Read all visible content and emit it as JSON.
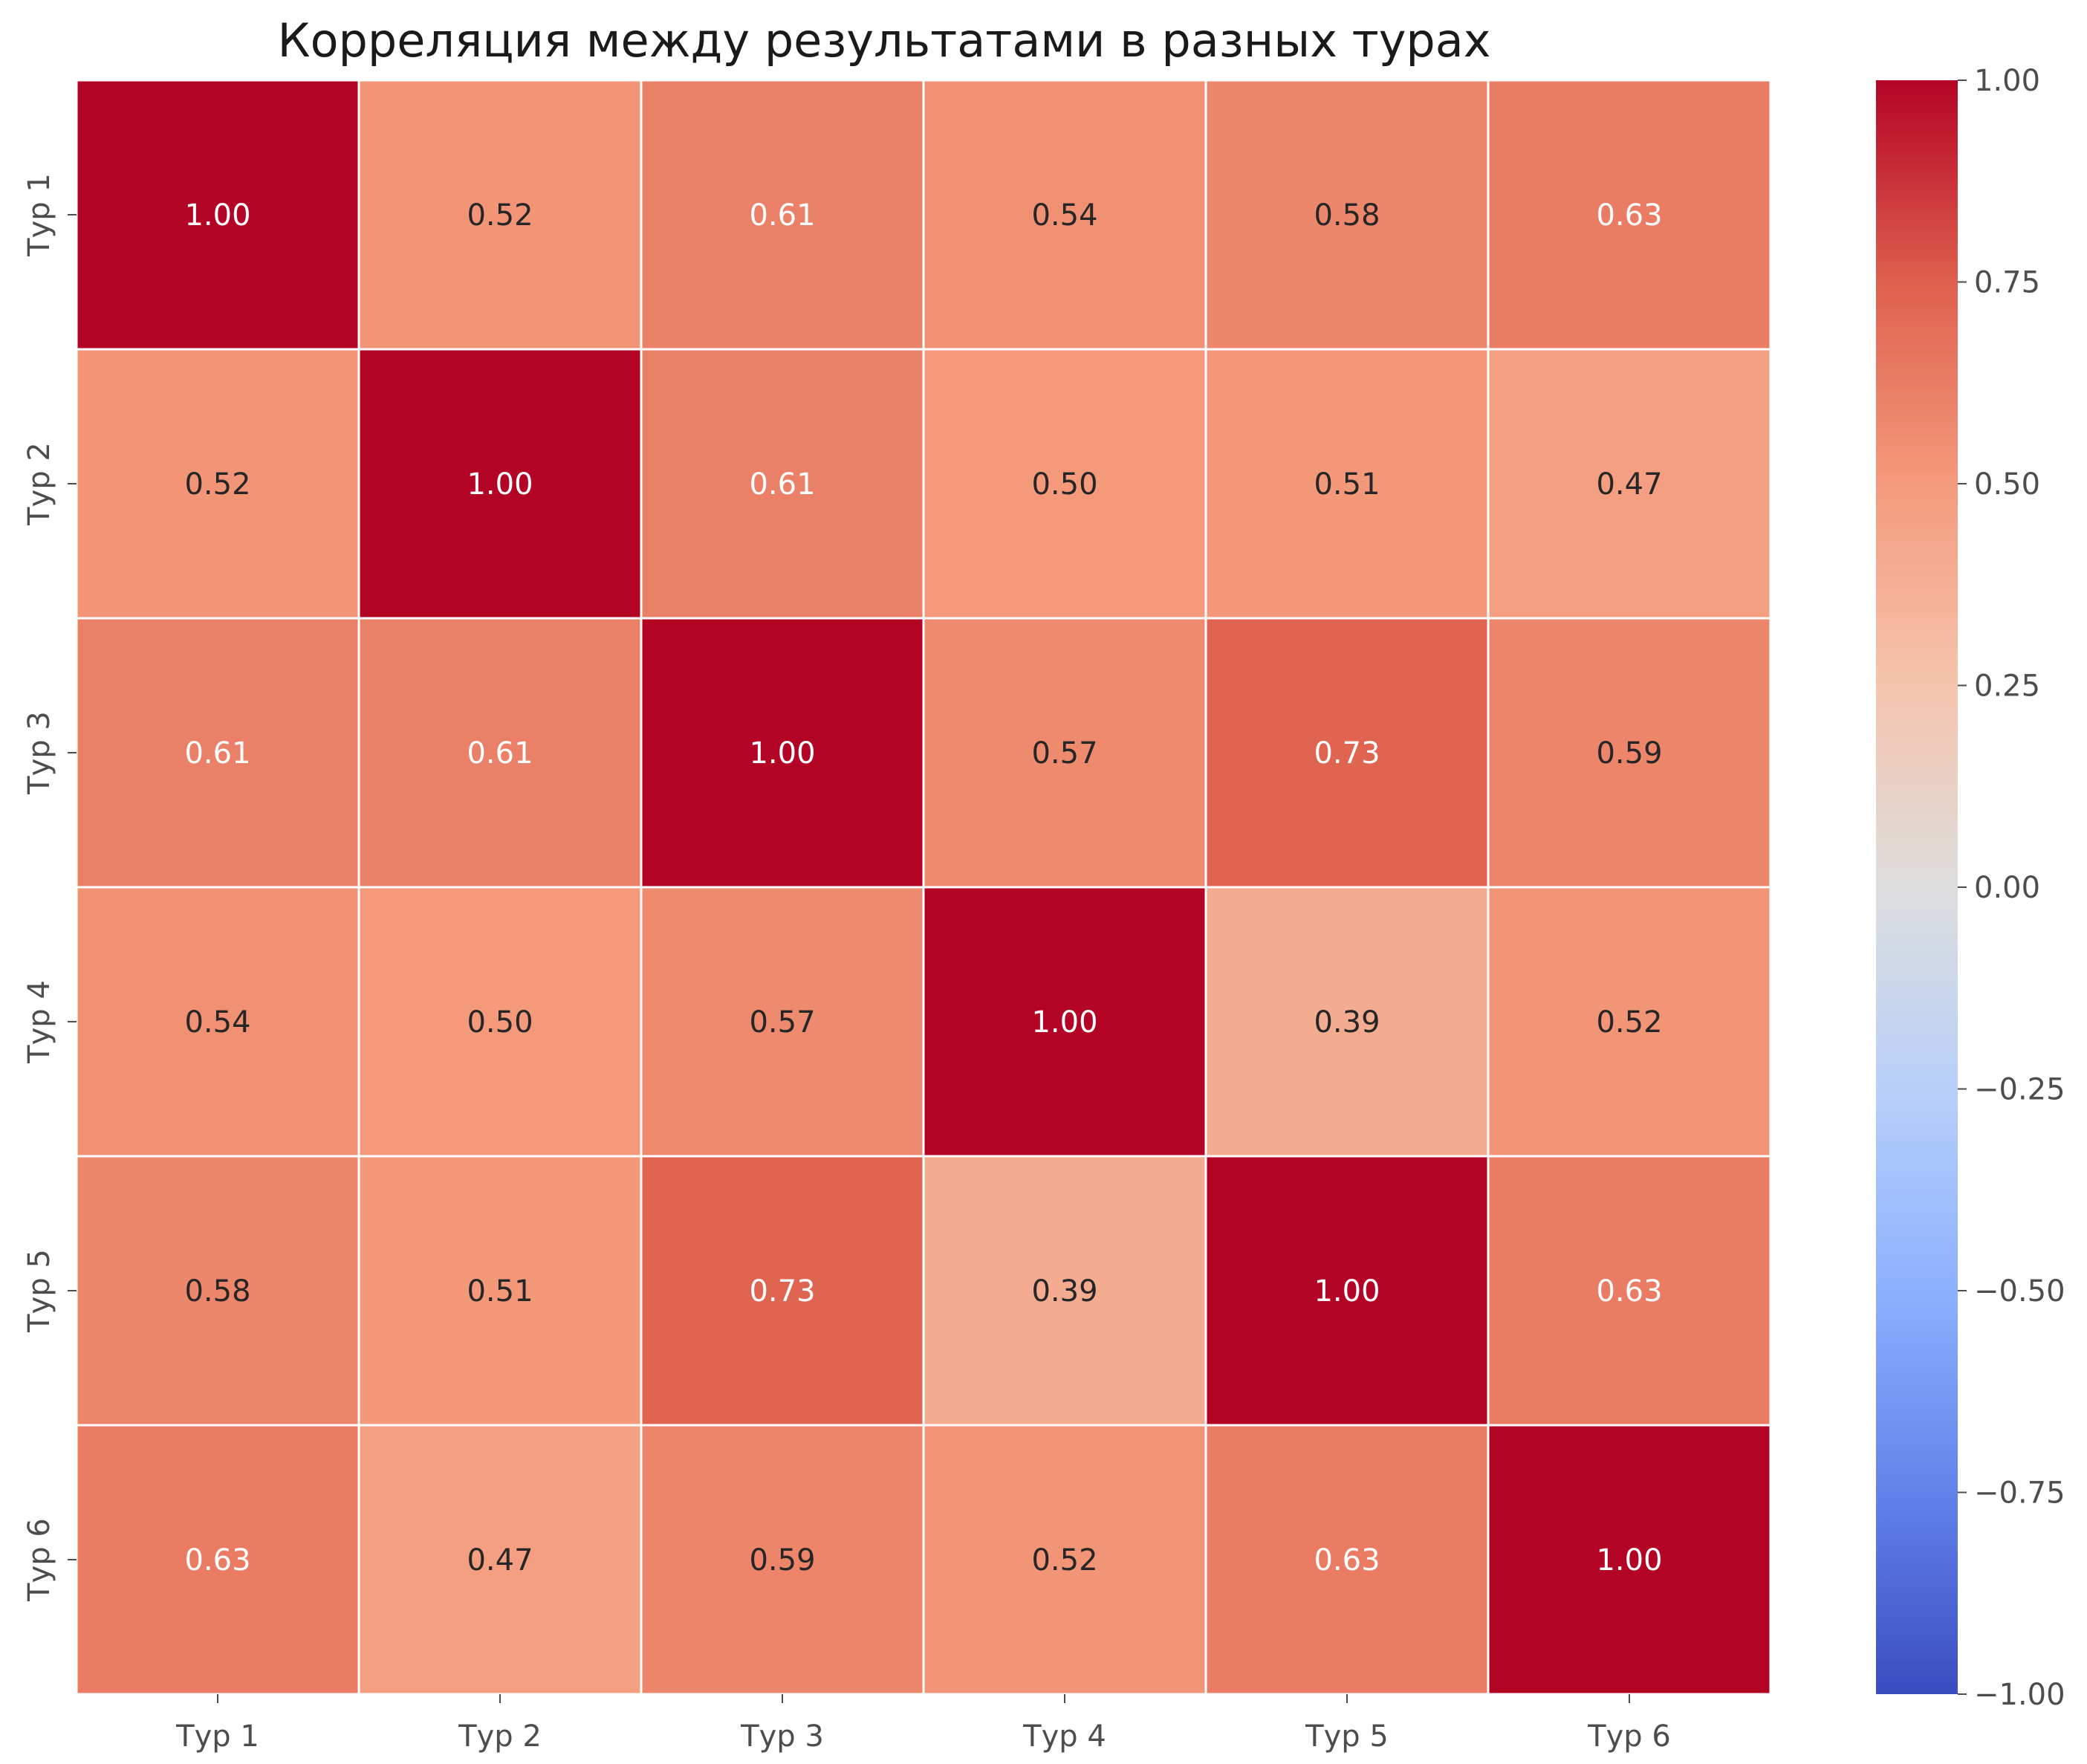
{
  "chart_data": {
    "type": "heatmap",
    "title": "Корреляция между результатами в разных турах",
    "row_labels": [
      "Тур 1",
      "Тур 2",
      "Тур 3",
      "Тур 4",
      "Тур 5",
      "Тур 6"
    ],
    "col_labels": [
      "Тур 1",
      "Тур 2",
      "Тур 3",
      "Тур 4",
      "Тур 5",
      "Тур 6"
    ],
    "values": [
      [
        1.0,
        0.52,
        0.61,
        0.54,
        0.58,
        0.63
      ],
      [
        0.52,
        1.0,
        0.61,
        0.5,
        0.51,
        0.47
      ],
      [
        0.61,
        0.61,
        1.0,
        0.57,
        0.73,
        0.59
      ],
      [
        0.54,
        0.5,
        0.57,
        1.0,
        0.39,
        0.52
      ],
      [
        0.58,
        0.51,
        0.73,
        0.39,
        1.0,
        0.63
      ],
      [
        0.63,
        0.47,
        0.59,
        0.52,
        0.63,
        1.0
      ]
    ],
    "value_format": "0.00",
    "colormap": "coolwarm",
    "vmin": -1.0,
    "vmax": 1.0,
    "colorbar_ticks": [
      1.0,
      0.75,
      0.5,
      0.25,
      0.0,
      -0.25,
      -0.5,
      -0.75,
      -1.0
    ],
    "colorbar_tick_labels": [
      "1.00",
      "0.75",
      "0.50",
      "0.25",
      "0.00",
      "−0.25",
      "−0.50",
      "−0.75",
      "−1.00"
    ],
    "colorbar_placement": "right",
    "cell_border_color": "#ffffff"
  }
}
